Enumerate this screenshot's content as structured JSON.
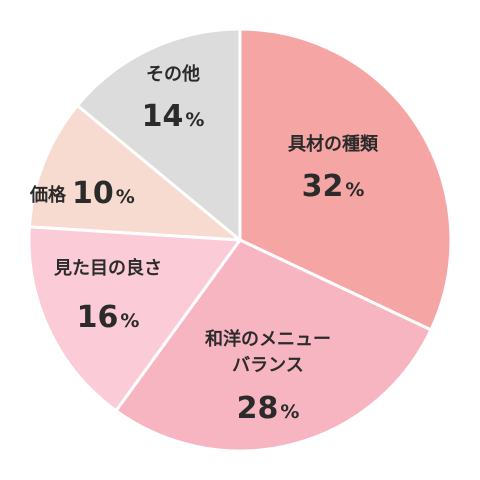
{
  "chart_data": {
    "type": "pie",
    "title": "",
    "unit": "%",
    "slices": [
      {
        "label_lines": [
          "具材の種類"
        ],
        "value": 32,
        "color": "#f6a5a5"
      },
      {
        "label_lines": [
          "和洋のメニュー",
          "バランス"
        ],
        "value": 28,
        "color": "#f7b5c1"
      },
      {
        "label_lines": [
          "見た目の良さ"
        ],
        "value": 16,
        "color": "#fbcbd7"
      },
      {
        "label_lines": [
          "価格"
        ],
        "value": 10,
        "color": "#f8dbd0"
      },
      {
        "label_lines": [
          "その他"
        ],
        "value": 14,
        "color": "#dcdcdc"
      }
    ]
  }
}
